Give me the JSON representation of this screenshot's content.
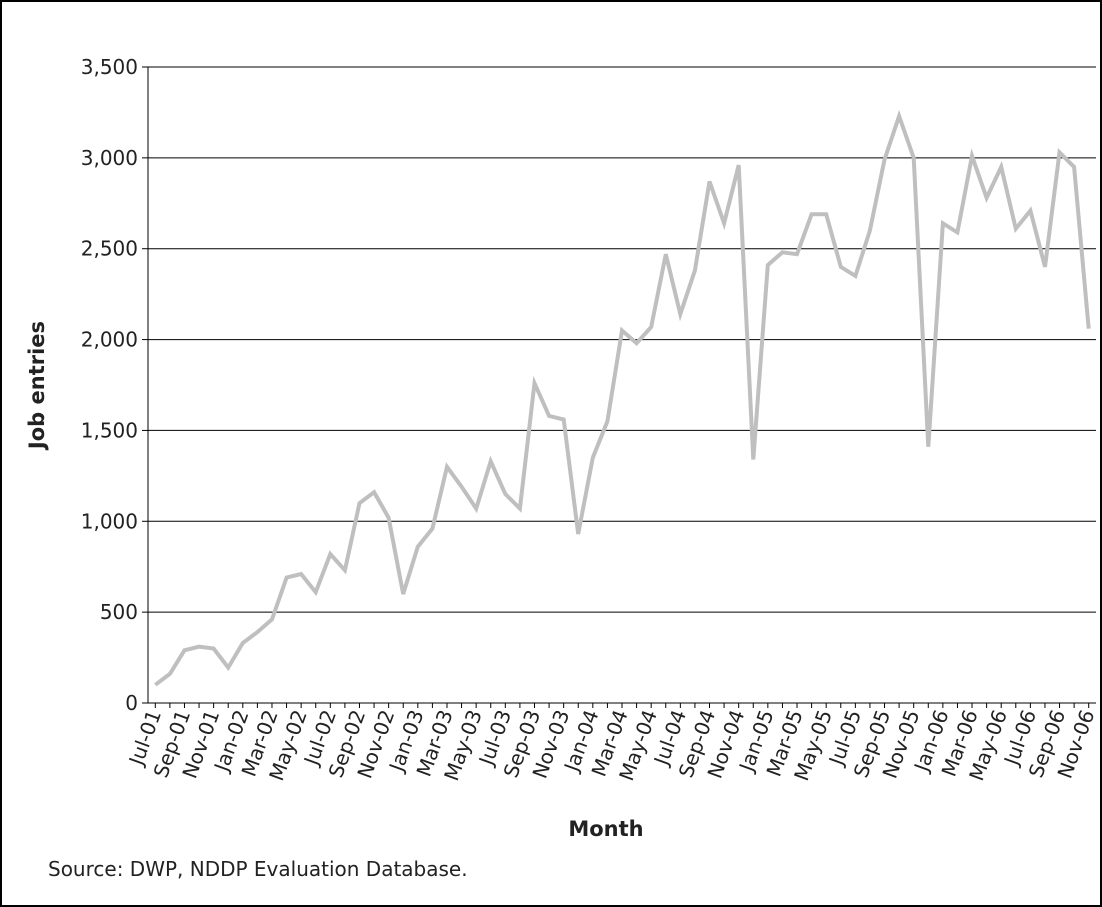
{
  "chart_data": {
    "type": "line",
    "y_label": "Job entries",
    "x_label": "Month",
    "source": "Source: DWP, NDDP Evaluation Database.",
    "categories": [
      "Jul-01",
      null,
      "Sep-01",
      null,
      "Nov-01",
      null,
      "Jan-02",
      null,
      "Mar-02",
      null,
      "May-02",
      null,
      "Jul-02",
      null,
      "Sep-02",
      null,
      "Nov-02",
      null,
      "Jan-03",
      null,
      "Mar-03",
      null,
      "May-03",
      null,
      "Jul-03",
      null,
      "Sep-03",
      null,
      "Nov-03",
      null,
      "Jan-04",
      null,
      "Mar-04",
      null,
      "May-04",
      null,
      "Jul-04",
      null,
      "Sep-04",
      null,
      "Nov-04",
      null,
      "Jan-05",
      null,
      "Mar-05",
      null,
      "May-05",
      null,
      "Jul-05",
      null,
      "Sep-05",
      null,
      "Nov-05",
      null,
      "Jan-06",
      null,
      "Mar-06",
      null,
      "May-06",
      null,
      "Jul-06",
      null,
      "Sep-06",
      null,
      "Nov-06"
    ],
    "values": [
      100,
      160,
      290,
      310,
      300,
      195,
      330,
      390,
      460,
      690,
      710,
      610,
      820,
      730,
      1100,
      1160,
      1020,
      600,
      860,
      960,
      1300,
      1190,
      1070,
      1330,
      1150,
      1070,
      1760,
      1580,
      1560,
      930,
      1350,
      1550,
      2050,
      1980,
      2070,
      2470,
      2140,
      2380,
      2870,
      2640,
      2960,
      1340,
      2410,
      2480,
      2470,
      2690,
      2690,
      2400,
      2350,
      2600,
      2990,
      3230,
      3000,
      1410,
      2640,
      2590,
      3010,
      2780,
      2950,
      2610,
      2710,
      2400,
      3030,
      2950,
      2060
    ],
    "color": "#bfbfbf",
    "ylim": [
      0,
      3500
    ],
    "yticks": [
      0,
      500,
      {
        "value": 1000,
        "label": "1,000"
      },
      {
        "value": 1500,
        "label": "1,500"
      },
      {
        "value": 2000,
        "label": "2,000"
      },
      {
        "value": 2500,
        "label": "2,500"
      },
      {
        "value": 3000,
        "label": "3,000"
      },
      {
        "value": 3500,
        "label": "3,500"
      }
    ],
    "grid": true
  }
}
